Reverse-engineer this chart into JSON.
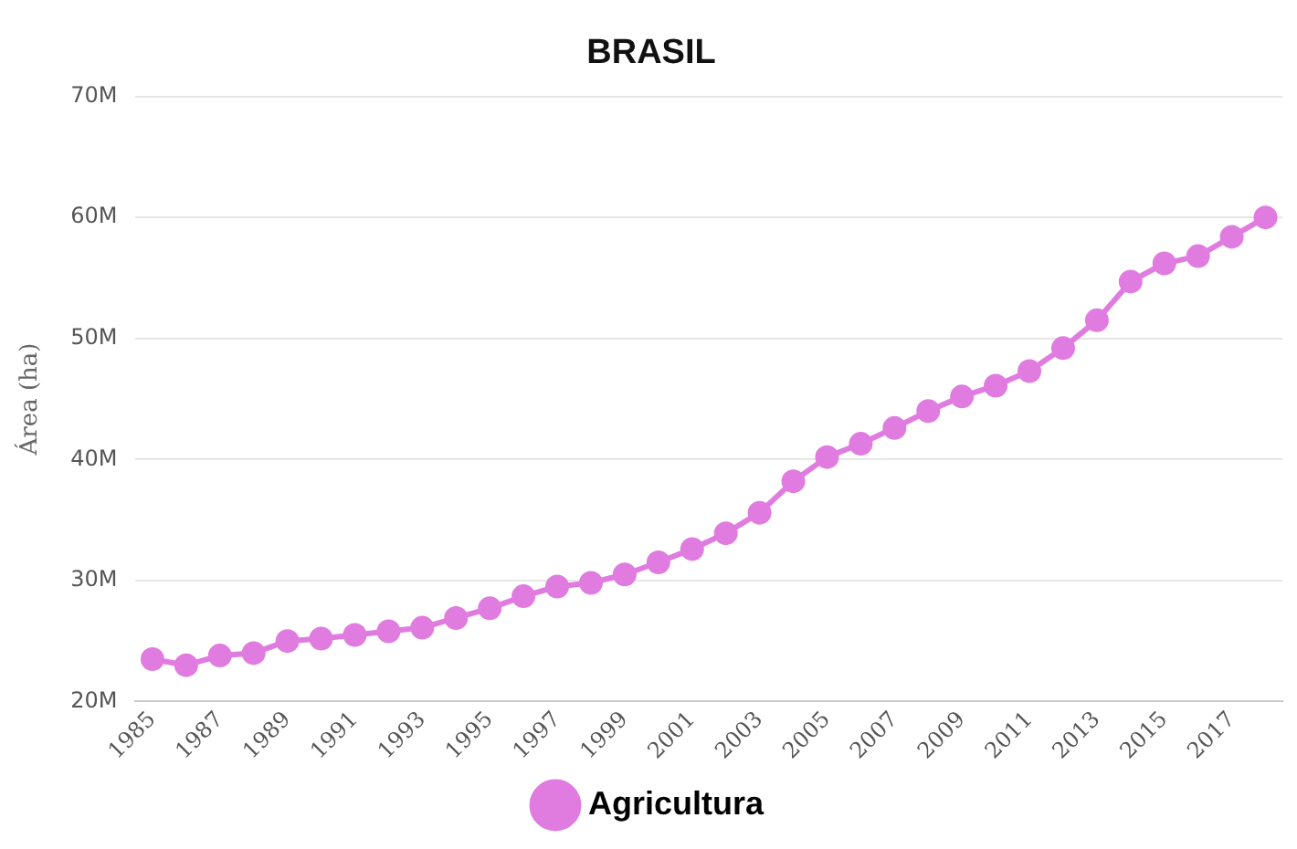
{
  "chart_data": {
    "type": "line",
    "title": "BRASIL",
    "ylabel": "Área (ha)",
    "categories": [
      "1985",
      null,
      "1987",
      null,
      "1989",
      null,
      "1991",
      null,
      "1993",
      null,
      "1995",
      null,
      "1997",
      null,
      "1999",
      null,
      "2001",
      null,
      "2003",
      null,
      "2005",
      null,
      "2007",
      null,
      "2009",
      null,
      "2011",
      null,
      "2013",
      null,
      "2015",
      null,
      "2017",
      null
    ],
    "series": [
      {
        "name": "Agricultura",
        "color": "#e07be0",
        "values": [
          23500000,
          23000000,
          23800000,
          24000000,
          25000000,
          25200000,
          25500000,
          25800000,
          26100000,
          26900000,
          27700000,
          28700000,
          29500000,
          29800000,
          30500000,
          31500000,
          32600000,
          33900000,
          35600000,
          38200000,
          40200000,
          41300000,
          42600000,
          44000000,
          45200000,
          46100000,
          47300000,
          49200000,
          51500000,
          54700000,
          56200000,
          56800000,
          58400000,
          60000000
        ]
      }
    ],
    "ylim": [
      20000000,
      70000000
    ],
    "yticks": [
      {
        "value": 20000000,
        "label": "20M"
      },
      {
        "value": 30000000,
        "label": "30M"
      },
      {
        "value": 40000000,
        "label": "40M"
      },
      {
        "value": 50000000,
        "label": "50M"
      },
      {
        "value": 60000000,
        "label": "60M"
      },
      {
        "value": 70000000,
        "label": "70M"
      }
    ],
    "grid": "y",
    "legend": "bottom",
    "marker": "circle",
    "line_style": "solid"
  }
}
